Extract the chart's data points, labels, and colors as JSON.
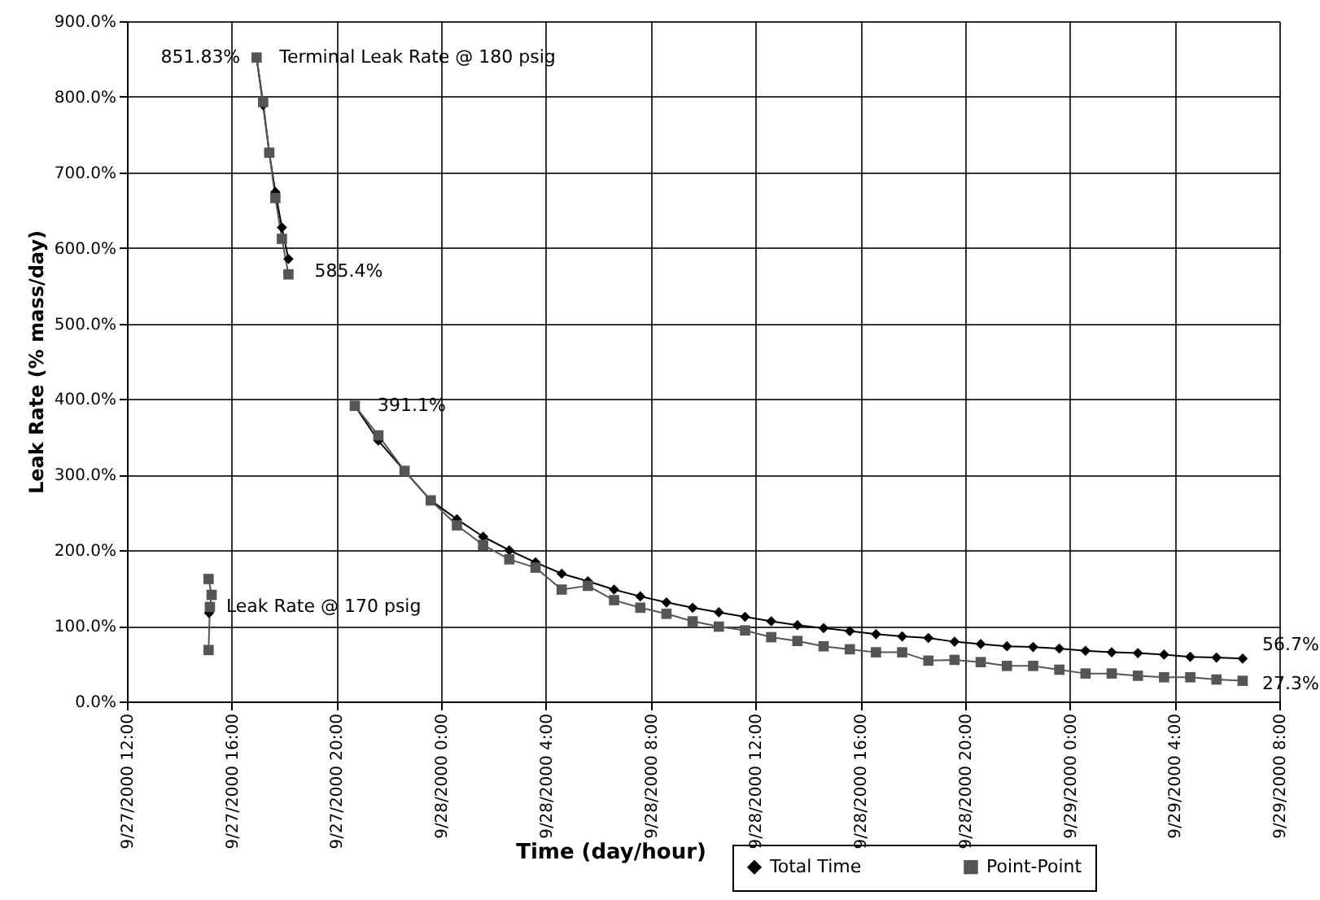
{
  "chart_data": {
    "type": "line",
    "xlabel": "Time (day/hour)",
    "ylabel": "Leak Rate (% mass/day)",
    "xlim": [
      "2000-09-27T12:00",
      "2000-09-29T08:00"
    ],
    "xticks": [
      {
        "value": "2000-09-27T12:00",
        "label": "9/27/2000 12:00"
      },
      {
        "value": "2000-09-27T16:00",
        "label": "9/27/2000 16:00"
      },
      {
        "value": "2000-09-27T20:00",
        "label": "9/27/2000 20:00"
      },
      {
        "value": "2000-09-28T00:00",
        "label": "9/28/2000 0:00"
      },
      {
        "value": "2000-09-28T04:00",
        "label": "9/28/2000 4:00"
      },
      {
        "value": "2000-09-28T08:00",
        "label": "9/28/2000 8:00"
      },
      {
        "value": "2000-09-28T12:00",
        "label": "9/28/2000 12:00"
      },
      {
        "value": "2000-09-28T16:00",
        "label": "9/28/2000 16:00"
      },
      {
        "value": "2000-09-28T20:00",
        "label": "9/28/2000 20:00"
      },
      {
        "value": "2000-09-29T00:00",
        "label": "9/29/2000 0:00"
      },
      {
        "value": "2000-09-29T04:00",
        "label": "9/29/2000 4:00"
      },
      {
        "value": "2000-09-29T08:00",
        "label": "9/29/2000 8:00"
      }
    ],
    "ylim": [
      0,
      900
    ],
    "yticks": [
      {
        "value": 0,
        "label": "0.0%"
      },
      {
        "value": 100,
        "label": "100.0%"
      },
      {
        "value": 200,
        "label": "200.0%"
      },
      {
        "value": 300,
        "label": "300.0%"
      },
      {
        "value": 400,
        "label": "400.0%"
      },
      {
        "value": 500,
        "label": "500.0%"
      },
      {
        "value": 600,
        "label": "600.0%"
      },
      {
        "value": 700,
        "label": "700.0%"
      },
      {
        "value": 800,
        "label": "800.0%"
      },
      {
        "value": 900,
        "label": "900.0%"
      }
    ],
    "grid": true,
    "legend": "bottom right",
    "line_style": "solid",
    "series": [
      {
        "name": "Total Time",
        "color": "#000000",
        "marker": "diamond",
        "x": [
          "2000-09-27T15:08",
          "2000-09-27T16:00",
          "2000-09-27T16:57",
          "2000-09-27T17:12",
          "2000-09-27T17:26",
          "2000-09-27T17:40",
          "2000-09-27T17:55",
          "2000-09-27T18:10",
          "2000-09-27T19:30",
          "2000-09-27T20:42",
          "2000-09-27T21:36",
          "2000-09-27T22:36",
          "2000-09-27T23:36",
          "2000-09-28T00:36",
          "2000-09-28T01:36",
          "2000-09-28T02:36",
          "2000-09-28T03:36",
          "2000-09-28T04:36",
          "2000-09-28T05:36",
          "2000-09-28T06:36",
          "2000-09-28T07:36",
          "2000-09-28T08:36",
          "2000-09-28T09:36",
          "2000-09-28T10:36",
          "2000-09-28T11:36",
          "2000-09-28T12:36",
          "2000-09-28T13:36",
          "2000-09-28T14:36",
          "2000-09-28T15:36",
          "2000-09-28T16:36",
          "2000-09-28T17:36",
          "2000-09-28T18:36",
          "2000-09-28T19:36",
          "2000-09-28T20:36",
          "2000-09-28T21:36",
          "2000-09-28T22:36",
          "2000-09-28T23:36",
          "2000-09-29T00:36",
          "2000-09-29T01:36",
          "2000-09-29T02:36",
          "2000-09-29T03:36",
          "2000-09-29T04:36",
          "2000-09-29T05:36",
          "2000-09-29T06:36"
        ],
        "values": [
          117,
          null,
          851.83,
          789,
          726,
          674,
          627,
          585.4,
          null,
          391.1,
          345,
          305,
          266,
          241,
          218,
          200,
          184,
          169,
          159,
          148,
          139,
          131,
          124,
          118,
          112,
          106,
          101,
          97,
          93,
          89,
          86,
          84,
          79,
          76,
          73,
          72,
          70,
          67,
          65,
          64,
          62,
          59,
          58,
          56.7
        ]
      },
      {
        "name": "Point-Point",
        "color": "#555555",
        "marker": "square",
        "x": [
          "2000-09-27T15:07",
          "2000-09-27T15:14",
          "2000-09-27T15:10",
          "2000-09-27T15:07",
          "2000-09-27T16:00",
          "2000-09-27T16:57",
          "2000-09-27T17:12",
          "2000-09-27T17:26",
          "2000-09-27T17:40",
          "2000-09-27T17:55",
          "2000-09-27T18:10",
          "2000-09-27T19:30",
          "2000-09-27T20:42",
          "2000-09-27T21:36",
          "2000-09-27T22:36",
          "2000-09-27T23:36",
          "2000-09-28T00:36",
          "2000-09-28T01:36",
          "2000-09-28T02:36",
          "2000-09-28T03:36",
          "2000-09-28T04:36",
          "2000-09-28T05:36",
          "2000-09-28T06:36",
          "2000-09-28T07:36",
          "2000-09-28T08:36",
          "2000-09-28T09:36",
          "2000-09-28T10:36",
          "2000-09-28T11:36",
          "2000-09-28T12:36",
          "2000-09-28T13:36",
          "2000-09-28T14:36",
          "2000-09-28T15:36",
          "2000-09-28T16:36",
          "2000-09-28T17:36",
          "2000-09-28T18:36",
          "2000-09-28T19:36",
          "2000-09-28T20:36",
          "2000-09-28T21:36",
          "2000-09-28T22:36",
          "2000-09-28T23:36",
          "2000-09-29T00:36",
          "2000-09-29T01:36",
          "2000-09-29T02:36",
          "2000-09-29T03:36",
          "2000-09-29T04:36",
          "2000-09-29T05:36",
          "2000-09-29T06:36"
        ],
        "values": [
          162,
          141,
          125,
          68,
          null,
          851.83,
          793,
          726,
          666,
          612,
          565,
          null,
          391.1,
          352,
          305,
          266,
          233,
          207,
          188,
          177,
          148,
          153,
          134,
          124,
          116,
          106,
          99,
          94,
          85,
          80,
          73,
          69,
          65,
          65,
          54,
          55,
          52,
          47,
          47,
          42,
          37,
          37,
          34,
          32,
          32,
          29,
          27.3
        ]
      }
    ],
    "annotations": [
      {
        "text": "851.83%",
        "x": "2000-09-27T16:57",
        "y": 851.83
      },
      {
        "text": "Terminal Leak Rate @ 180 psig",
        "x": "2000-09-27T16:57",
        "y": 851.83
      },
      {
        "text": "585.4%",
        "x": "2000-09-27T18:10",
        "y": 585.4
      },
      {
        "text": "391.1%",
        "x": "2000-09-27T20:42",
        "y": 391.1
      },
      {
        "text": "Leak Rate @ 170 psig",
        "x": "2000-09-27T15:10",
        "y": 125
      },
      {
        "text": "56.7%",
        "x": "2000-09-29T06:36",
        "y": 56.7
      },
      {
        "text": "27.3%",
        "x": "2000-09-29T06:36",
        "y": 27.3
      }
    ]
  }
}
